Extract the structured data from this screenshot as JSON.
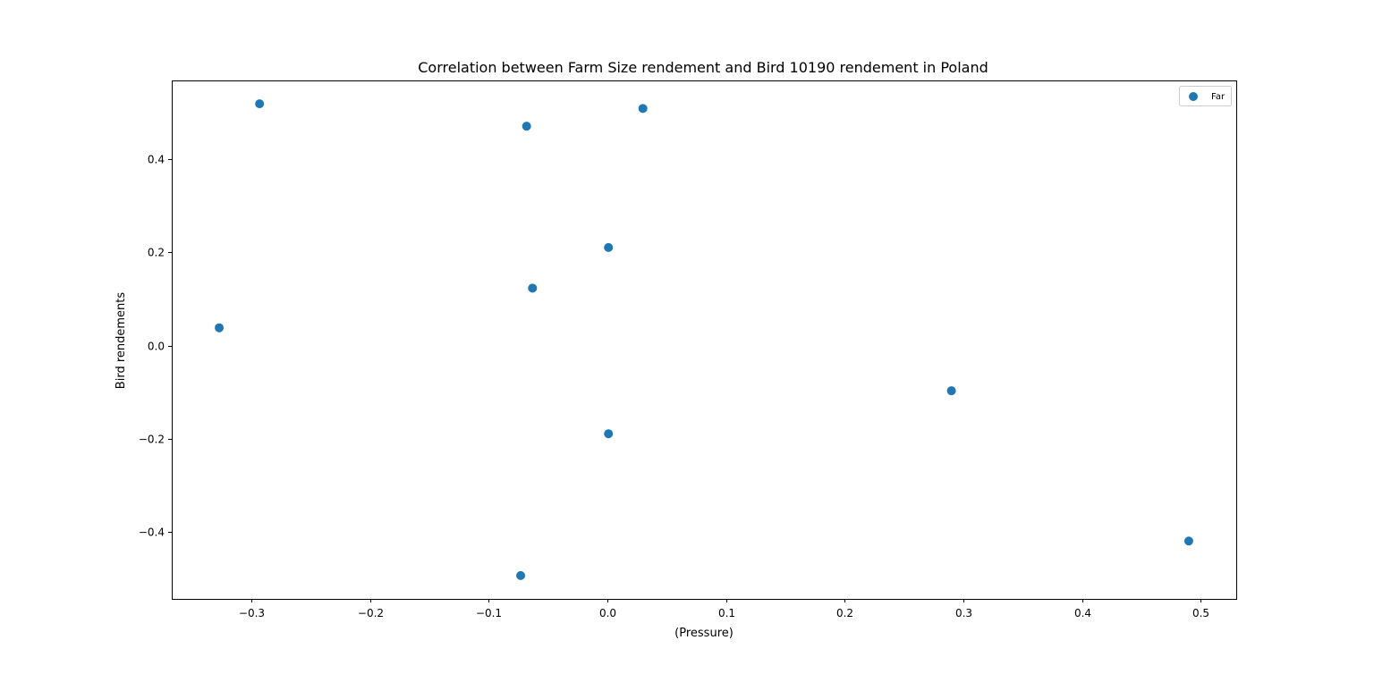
{
  "chart_data": {
    "type": "scatter",
    "title": "Correlation between Farm Size rendement and Bird 10190 rendement in Poland",
    "xlabel": "(Pressure)",
    "ylabel": "Bird rendements",
    "xlim": [
      -0.367,
      0.53
    ],
    "ylim": [
      -0.543,
      0.568
    ],
    "xticks": [
      -0.3,
      -0.2,
      -0.1,
      0.0,
      0.1,
      0.2,
      0.3,
      0.4,
      0.5
    ],
    "xtick_labels": [
      "−0.3",
      "−0.2",
      "−0.1",
      "0.0",
      "0.1",
      "0.2",
      "0.3",
      "0.4",
      "0.5"
    ],
    "yticks": [
      -0.4,
      -0.2,
      0.0,
      0.2,
      0.4
    ],
    "ytick_labels": [
      "−0.4",
      "−0.2",
      "0.0",
      "0.2",
      "0.4"
    ],
    "grid": false,
    "legend_position": "top-right",
    "series": [
      {
        "name": "Far",
        "color": "#1f77b4",
        "points": [
          {
            "x": -0.293,
            "y": 0.518
          },
          {
            "x": -0.068,
            "y": 0.47
          },
          {
            "x": 0.03,
            "y": 0.508
          },
          {
            "x": 0.001,
            "y": 0.21
          },
          {
            "x": -0.063,
            "y": 0.123
          },
          {
            "x": -0.327,
            "y": 0.038
          },
          {
            "x": 0.29,
            "y": -0.097
          },
          {
            "x": 0.001,
            "y": -0.189
          },
          {
            "x": -0.073,
            "y": -0.493
          },
          {
            "x": 0.49,
            "y": -0.419
          }
        ]
      }
    ]
  }
}
